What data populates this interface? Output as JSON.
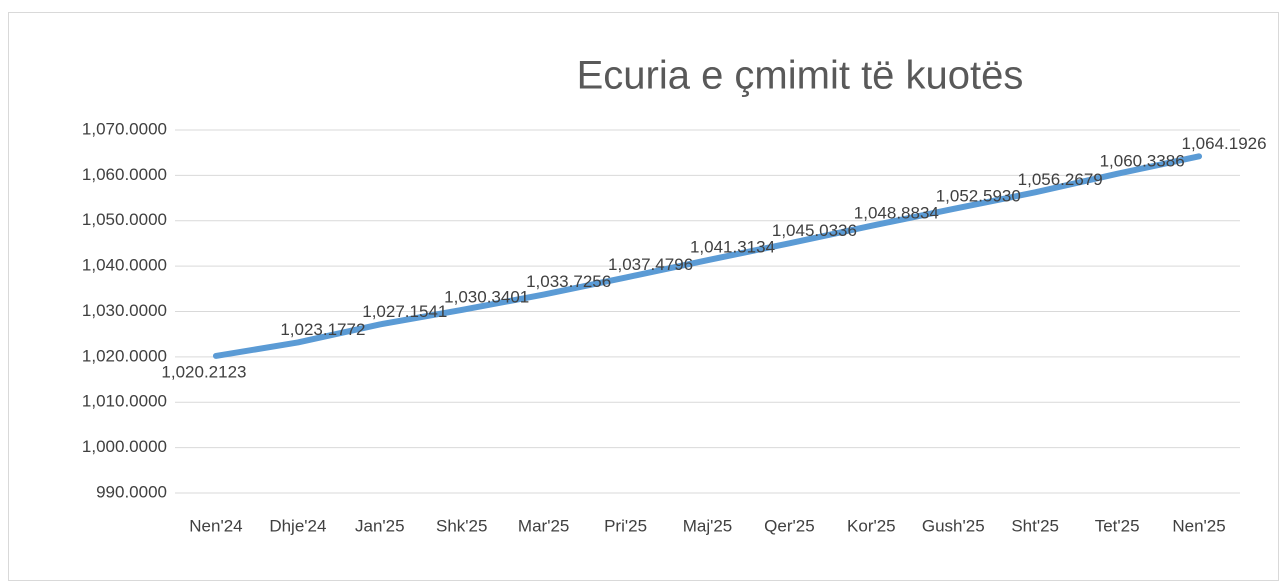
{
  "chart_data": {
    "type": "line",
    "title": "Ecuria e çmimit të kuotës",
    "categories": [
      "Nen'24",
      "Dhje'24",
      "Jan'25",
      "Shk'25",
      "Mar'25",
      "Pri'25",
      "Maj'25",
      "Qer'25",
      "Kor'25",
      "Gush'25",
      "Sht'25",
      "Tet'25",
      "Nen'25"
    ],
    "series": [
      {
        "name": "Ecuria e çmimit të kuotës",
        "color": "#5b9bd5",
        "values": [
          1020.2123,
          1023.1772,
          1027.1541,
          1030.3401,
          1033.7256,
          1037.4796,
          1041.3134,
          1045.0336,
          1048.8834,
          1052.593,
          1056.2679,
          1060.3386,
          1064.1926
        ],
        "value_labels": [
          "1,020.2123",
          "1,023.1772",
          "1,027.1541",
          "1,030.3401",
          "1,033.7256",
          "1,037.4796",
          "1,041.3134",
          "1,045.0336",
          "1,048.8834",
          "1,052.5930",
          "1,056.2679",
          "1,060.3386",
          "1,064.1926"
        ]
      }
    ],
    "ylim": [
      990,
      1070
    ],
    "yticks": [
      {
        "value": 990,
        "label": "990.0000"
      },
      {
        "value": 1000,
        "label": "1,000.0000"
      },
      {
        "value": 1010,
        "label": "1,010.0000"
      },
      {
        "value": 1020,
        "label": "1,020.0000"
      },
      {
        "value": 1030,
        "label": "1,030.0000"
      },
      {
        "value": 1040,
        "label": "1,040.0000"
      },
      {
        "value": 1050,
        "label": "1,050.0000"
      },
      {
        "value": 1060,
        "label": "1,060.0000"
      },
      {
        "value": 1070,
        "label": "1,070.0000"
      }
    ],
    "grid": true
  }
}
